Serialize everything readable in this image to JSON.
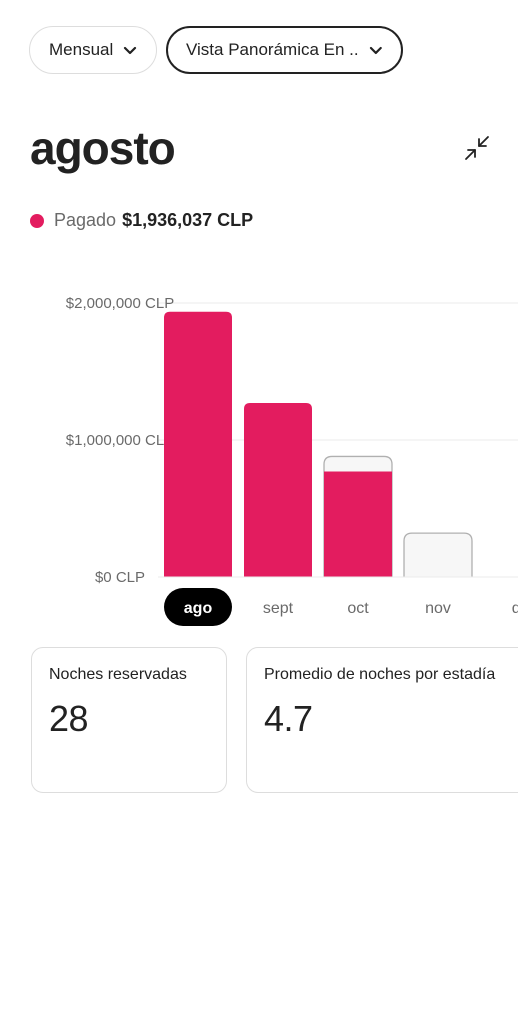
{
  "filters": {
    "period_label": "Mensual",
    "view_label": "Vista Panorámica En ..."
  },
  "month_title": "agosto",
  "legend": {
    "label": "Pagado",
    "value": "$1,936,037 CLP",
    "color": "#E31C5F"
  },
  "colors": {
    "accent": "#E31C5F",
    "pending_fill": "#F7F7F7",
    "pending_border": "#B0B0B0",
    "selected_bg": "#000000"
  },
  "chart_data": {
    "type": "bar",
    "categories": [
      "ago",
      "sept",
      "oct",
      "nov",
      "di"
    ],
    "series": [
      {
        "name": "Pagado",
        "values": [
          1936037,
          1270000,
          770000,
          0,
          null
        ]
      },
      {
        "name": "",
        "values": [
          1936037,
          1270000,
          880000,
          320000,
          null
        ]
      }
    ],
    "y_ticks": [
      "$2,000,000 CLP",
      "$1,000,000 CLP",
      "$0 CLP"
    ],
    "ylim": [
      0,
      2000000
    ],
    "selected_category": "ago",
    "grid": true
  },
  "stats": [
    {
      "label": "Noches reservadas",
      "value": "28"
    },
    {
      "label": "Promedio de noches por estadía",
      "value": "4.7"
    }
  ],
  "icons": {
    "chevron": "chevron-down-icon",
    "collapse": "collapse-icon"
  }
}
